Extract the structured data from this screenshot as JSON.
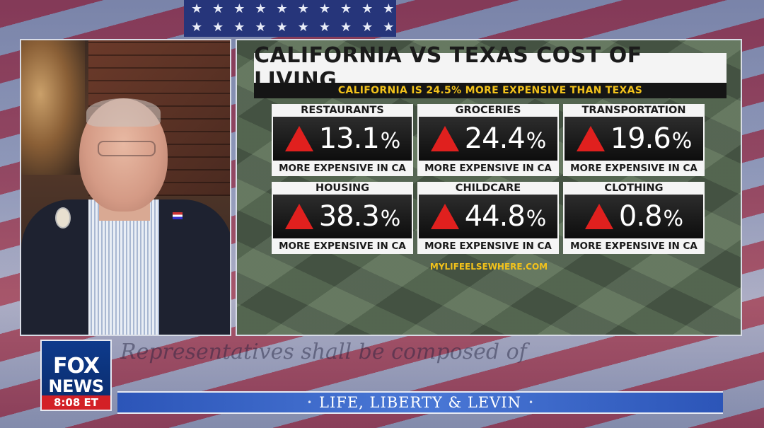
{
  "graphic": {
    "title": "CALIFORNIA VS TEXAS COST OF LIVING",
    "subtitle": "CALIFORNIA IS 24.5% MORE EXPENSIVE THAN TEXAS",
    "source": "MYLIFEELSEWHERE.COM",
    "cards": [
      {
        "category": "RESTAURANTS",
        "value": "13.1",
        "sign": "%",
        "note": "MORE EXPENSIVE IN CA"
      },
      {
        "category": "GROCERIES",
        "value": "24.4",
        "sign": "%",
        "note": "MORE EXPENSIVE IN CA"
      },
      {
        "category": "TRANSPORTATION",
        "value": "19.6",
        "sign": "%",
        "note": "MORE EXPENSIVE IN CA"
      },
      {
        "category": "HOUSING",
        "value": "38.3",
        "sign": "%",
        "note": "MORE EXPENSIVE IN CA"
      },
      {
        "category": "CHILDCARE",
        "value": "44.8",
        "sign": "%",
        "note": "MORE EXPENSIVE IN CA"
      },
      {
        "category": "CLOTHING",
        "value": "0.8",
        "sign": "%",
        "note": "MORE EXPENSIVE IN CA"
      }
    ]
  },
  "network": {
    "logo_line1": "FOX",
    "logo_line2": "NEWS",
    "time": "8:08 ET"
  },
  "show": {
    "name": "LIFE, LIBERTY & LEVIN"
  },
  "colors": {
    "accent_yellow": "#f2c21b",
    "up_red": "#e0201e",
    "fox_blue": "#0e3a8c",
    "time_red": "#d32026"
  },
  "icons": {
    "increase": "red-up-triangle-icon"
  }
}
